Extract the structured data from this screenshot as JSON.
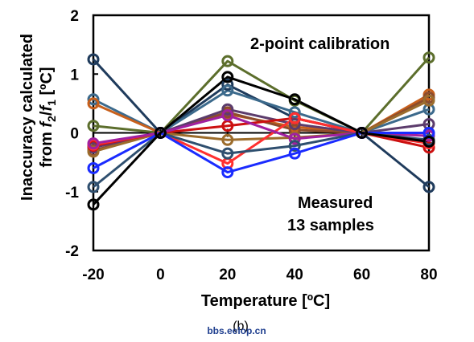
{
  "chart_data": {
    "type": "line",
    "xlabel": "Temperature [ºC]",
    "ylabel_line1": "Inaccuracy calculated",
    "ylabel_line2": [
      "from ",
      "f",
      "2",
      "/",
      "f",
      "1",
      " [ºC]"
    ],
    "x": [
      -20,
      0,
      20,
      40,
      60,
      80
    ],
    "xlim": [
      -20,
      80
    ],
    "ylim": [
      -2,
      2
    ],
    "x_ticks": [
      "-20",
      "0",
      "20",
      "40",
      "60",
      "80"
    ],
    "y_ticks": [
      "2",
      "1",
      "0",
      "-1",
      "-2"
    ],
    "grid": false,
    "annotations": {
      "calibration": "2-point calibration",
      "measured_line1": "Measured",
      "measured_line2": "13 samples"
    },
    "caption": "(b)",
    "watermark": "bbs.eelop.cn",
    "series": [
      {
        "color": "#1f3b5c",
        "values": [
          1.25,
          0,
          0.82,
          0.25,
          0,
          -0.92
        ]
      },
      {
        "color": "#5c6e2c",
        "values": [
          0.12,
          0,
          1.22,
          0.55,
          0,
          1.28
        ]
      },
      {
        "color": "#3c6a8c",
        "values": [
          0.57,
          0,
          0.72,
          0.35,
          0,
          0.4
        ]
      },
      {
        "color": "#c8601c",
        "values": [
          0.5,
          0,
          0.32,
          0.1,
          0,
          0.65
        ]
      },
      {
        "color": "#8c4c2c",
        "values": [
          -0.3,
          0,
          0.35,
          0.05,
          0,
          0.6
        ]
      },
      {
        "color": "#5c3c6c",
        "values": [
          -0.25,
          0,
          0.4,
          0.15,
          0,
          0.15
        ]
      },
      {
        "color": "#9c6c2c",
        "values": [
          -0.32,
          0,
          -0.12,
          -0.08,
          0,
          0.55
        ]
      },
      {
        "color": "#cc1010",
        "values": [
          -0.22,
          0,
          0.12,
          0.25,
          0,
          -0.25
        ]
      },
      {
        "color": "#ff3030",
        "values": [
          -0.2,
          0,
          -0.52,
          0.25,
          0,
          -0.18
        ]
      },
      {
        "color": "#a020a0",
        "values": [
          -0.18,
          0,
          0.3,
          -0.1,
          0,
          -0.05
        ]
      },
      {
        "color": "#2f4f6f",
        "values": [
          -0.92,
          0,
          -0.35,
          -0.22,
          0,
          -0.12
        ]
      },
      {
        "color": "#1a2bff",
        "values": [
          -0.6,
          0,
          -0.67,
          -0.35,
          0,
          0.0
        ]
      },
      {
        "color": "#000000",
        "values": [
          -1.22,
          0,
          0.95,
          0.57,
          0,
          -0.15
        ]
      }
    ]
  }
}
